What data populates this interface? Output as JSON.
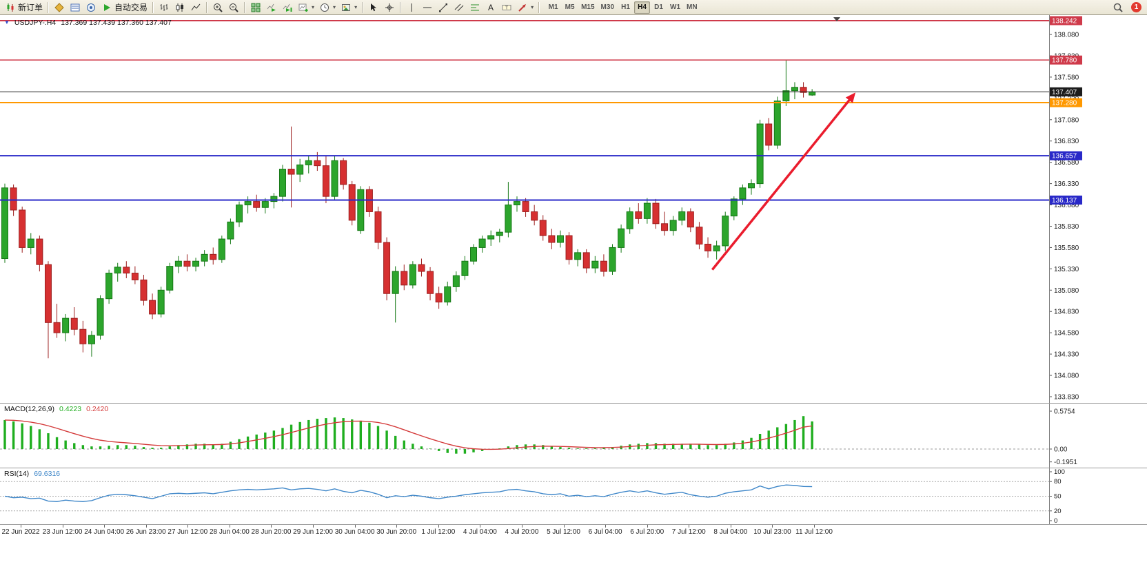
{
  "toolbar": {
    "items": [
      {
        "name": "new-order-button",
        "icon": "new-order-icon",
        "label": "新订单"
      },
      {
        "type": "sep"
      },
      {
        "name": "market-watch-button",
        "icon": "market-watch-icon"
      },
      {
        "name": "data-window-button",
        "icon": "data-window-icon"
      },
      {
        "name": "navigator-button",
        "icon": "navigator-icon"
      },
      {
        "name": "auto-trading-button",
        "icon": "auto-trading-icon",
        "label": "自动交易"
      },
      {
        "type": "sep"
      },
      {
        "name": "bar-chart-button",
        "icon": "bar-chart-icon"
      },
      {
        "name": "candlestick-button",
        "icon": "candlestick-icon"
      },
      {
        "name": "line-chart-button",
        "icon": "line-chart-icon"
      },
      {
        "type": "sep"
      },
      {
        "name": "zoom-in-button",
        "icon": "zoom-in-icon"
      },
      {
        "name": "zoom-out-button",
        "icon": "zoom-out-icon"
      },
      {
        "type": "sep"
      },
      {
        "name": "tile-windows-button",
        "icon": "tile-windows-icon"
      },
      {
        "name": "auto-scroll-button",
        "icon": "auto-scroll-icon"
      },
      {
        "name": "chart-shift-button",
        "icon": "chart-shift-icon"
      },
      {
        "name": "new-chart-button",
        "icon": "new-chart-icon",
        "caret": true
      },
      {
        "name": "periods-button",
        "icon": "period-icon",
        "caret": true
      },
      {
        "name": "templates-button",
        "icon": "template-icon",
        "caret": true
      },
      {
        "type": "sep"
      },
      {
        "name": "cursor-button",
        "icon": "cursor-icon"
      },
      {
        "name": "crosshair-button",
        "icon": "crosshair-icon"
      },
      {
        "type": "sep"
      },
      {
        "name": "vertical-line-button",
        "icon": "vline-icon"
      },
      {
        "name": "horizontal-line-button",
        "icon": "hline-icon"
      },
      {
        "name": "trendline-button",
        "icon": "trendline-icon"
      },
      {
        "name": "channel-button",
        "icon": "channel-icon"
      },
      {
        "name": "fibonacci-button",
        "icon": "fibonacci-icon"
      },
      {
        "name": "text-button",
        "icon": "text-icon"
      },
      {
        "name": "text-label-button",
        "icon": "label-icon"
      },
      {
        "name": "shapes-button",
        "icon": "shapes-icon",
        "caret": true
      },
      {
        "type": "sep"
      }
    ],
    "timeframes": [
      "M1",
      "M5",
      "M15",
      "M30",
      "H1",
      "H4",
      "D1",
      "W1",
      "MN"
    ],
    "active_timeframe": "H4",
    "badge": "1"
  },
  "chart_data": {
    "type": "candlestick",
    "main": {
      "symbol": "USDJPY-.H4",
      "ohlc_text": "137.369 137.439 137.360 137.407",
      "colors": {
        "up": "#2ca52c",
        "up_border": "#157815",
        "down": "#d63031",
        "down_border": "#9c1f1f"
      },
      "yticks": [
        "138.080",
        "137.830",
        "137.580",
        "137.330",
        "137.080",
        "136.830",
        "136.580",
        "136.330",
        "136.080",
        "135.830",
        "135.580",
        "135.330",
        "135.080",
        "134.830",
        "134.580",
        "134.330",
        "134.080",
        "133.830"
      ],
      "hlines": [
        {
          "price": 138.242,
          "label": "138.242",
          "color": "#cf3a4a",
          "width": 2
        },
        {
          "price": 137.78,
          "label": "137.780",
          "color": "#cf3a4a",
          "width": 1.5
        },
        {
          "price": 137.407,
          "label": "137.407",
          "color": "#1c1c1c",
          "width": 1
        },
        {
          "price": 137.28,
          "label": "137.280",
          "color": "#ff9800",
          "width": 2
        },
        {
          "price": 136.657,
          "label": "136.657",
          "color": "#2929c8",
          "width": 2
        },
        {
          "price": 136.137,
          "label": "136.137",
          "color": "#2929c8",
          "width": 2
        }
      ],
      "trend_arrow": {
        "from": {
          "bar": 81.5,
          "price": 135.32
        },
        "to": {
          "bar": 98,
          "price": 137.4
        },
        "color": "#ea1c2d"
      },
      "candles": [
        [
          135.45,
          136.33,
          135.4,
          136.28
        ],
        [
          136.28,
          136.32,
          135.95,
          136.02
        ],
        [
          136.02,
          136.06,
          135.52,
          135.58
        ],
        [
          135.58,
          135.75,
          135.5,
          135.68
        ],
        [
          135.68,
          135.72,
          135.3,
          135.38
        ],
        [
          135.38,
          135.42,
          134.28,
          134.7
        ],
        [
          134.7,
          134.92,
          134.52,
          134.58
        ],
        [
          134.58,
          134.8,
          134.48,
          134.75
        ],
        [
          134.75,
          134.88,
          134.55,
          134.62
        ],
        [
          134.62,
          134.72,
          134.35,
          134.45
        ],
        [
          134.45,
          134.6,
          134.3,
          134.55
        ],
        [
          134.55,
          135.02,
          134.5,
          134.98
        ],
        [
          134.98,
          135.32,
          134.92,
          135.28
        ],
        [
          135.28,
          135.4,
          135.18,
          135.35
        ],
        [
          135.35,
          135.42,
          135.22,
          135.28
        ],
        [
          135.28,
          135.36,
          135.15,
          135.2
        ],
        [
          135.2,
          135.26,
          134.9,
          134.96
        ],
        [
          134.96,
          135.04,
          134.74,
          134.8
        ],
        [
          134.8,
          135.12,
          134.76,
          135.08
        ],
        [
          135.08,
          135.4,
          135.04,
          135.36
        ],
        [
          135.36,
          135.48,
          135.28,
          135.42
        ],
        [
          135.42,
          135.5,
          135.3,
          135.36
        ],
        [
          135.36,
          135.46,
          135.3,
          135.42
        ],
        [
          135.42,
          135.55,
          135.36,
          135.5
        ],
        [
          135.5,
          135.58,
          135.38,
          135.44
        ],
        [
          135.44,
          135.72,
          135.4,
          135.68
        ],
        [
          135.68,
          135.92,
          135.62,
          135.88
        ],
        [
          135.88,
          136.12,
          135.82,
          136.08
        ],
        [
          136.08,
          136.18,
          135.98,
          136.12
        ],
        [
          136.12,
          136.2,
          136.0,
          136.05
        ],
        [
          136.05,
          136.16,
          135.98,
          136.12
        ],
        [
          136.12,
          136.22,
          136.04,
          136.18
        ],
        [
          136.18,
          136.55,
          136.12,
          136.5
        ],
        [
          136.5,
          137.0,
          136.05,
          136.44
        ],
        [
          136.44,
          136.62,
          136.35,
          136.55
        ],
        [
          136.55,
          136.66,
          136.45,
          136.6
        ],
        [
          136.6,
          136.7,
          136.48,
          136.54
        ],
        [
          136.54,
          136.66,
          136.1,
          136.18
        ],
        [
          136.18,
          136.65,
          136.14,
          136.6
        ],
        [
          136.6,
          136.63,
          136.26,
          136.32
        ],
        [
          136.32,
          136.36,
          135.84,
          135.9
        ],
        [
          135.78,
          136.3,
          135.74,
          136.26
        ],
        [
          136.26,
          136.3,
          135.94,
          136.0
        ],
        [
          136.0,
          136.06,
          135.56,
          135.64
        ],
        [
          135.64,
          135.7,
          134.96,
          135.04
        ],
        [
          135.04,
          135.36,
          134.7,
          135.3
        ],
        [
          135.3,
          135.38,
          135.08,
          135.14
        ],
        [
          135.14,
          135.42,
          135.1,
          135.38
        ],
        [
          135.38,
          135.45,
          135.24,
          135.3
        ],
        [
          135.3,
          135.35,
          134.96,
          135.04
        ],
        [
          135.04,
          135.12,
          134.86,
          134.94
        ],
        [
          134.94,
          135.18,
          134.9,
          135.12
        ],
        [
          135.12,
          135.3,
          135.06,
          135.25
        ],
        [
          135.25,
          135.48,
          135.2,
          135.42
        ],
        [
          135.42,
          135.62,
          135.38,
          135.58
        ],
        [
          135.58,
          135.72,
          135.52,
          135.68
        ],
        [
          135.68,
          135.78,
          135.6,
          135.72
        ],
        [
          135.72,
          135.8,
          135.64,
          135.76
        ],
        [
          135.76,
          136.35,
          135.7,
          136.08
        ],
        [
          136.08,
          136.18,
          136.0,
          136.12
        ],
        [
          136.12,
          136.16,
          135.94,
          136.0
        ],
        [
          136.0,
          136.08,
          135.84,
          135.9
        ],
        [
          135.9,
          135.96,
          135.66,
          135.72
        ],
        [
          135.72,
          135.8,
          135.56,
          135.64
        ],
        [
          135.64,
          135.78,
          135.58,
          135.72
        ],
        [
          135.72,
          135.76,
          135.38,
          135.44
        ],
        [
          135.44,
          135.56,
          135.36,
          135.52
        ],
        [
          135.52,
          135.56,
          135.28,
          135.34
        ],
        [
          135.34,
          135.48,
          135.28,
          135.42
        ],
        [
          135.42,
          135.5,
          135.24,
          135.3
        ],
        [
          135.3,
          135.62,
          135.26,
          135.58
        ],
        [
          135.58,
          135.85,
          135.52,
          135.8
        ],
        [
          135.8,
          136.05,
          135.74,
          136.0
        ],
        [
          136.0,
          136.1,
          135.86,
          135.92
        ],
        [
          135.92,
          136.16,
          135.86,
          136.1
        ],
        [
          136.1,
          136.15,
          135.8,
          135.86
        ],
        [
          135.86,
          136.0,
          135.72,
          135.78
        ],
        [
          135.78,
          135.95,
          135.72,
          135.9
        ],
        [
          135.9,
          136.05,
          135.84,
          136.0
        ],
        [
          136.0,
          136.04,
          135.76,
          135.82
        ],
        [
          135.82,
          135.88,
          135.56,
          135.62
        ],
        [
          135.62,
          135.7,
          135.46,
          135.54
        ],
        [
          135.54,
          135.66,
          135.44,
          135.6
        ],
        [
          135.6,
          136.0,
          135.54,
          135.95
        ],
        [
          135.95,
          136.18,
          135.9,
          136.15
        ],
        [
          136.15,
          136.32,
          136.08,
          136.28
        ],
        [
          136.28,
          136.38,
          136.2,
          136.33
        ],
        [
          136.33,
          137.08,
          136.28,
          137.03
        ],
        [
          137.03,
          137.1,
          136.72,
          136.78
        ],
        [
          136.78,
          137.35,
          136.74,
          137.3
        ],
        [
          137.3,
          137.78,
          137.24,
          137.42
        ],
        [
          137.42,
          137.52,
          137.32,
          137.46
        ],
        [
          137.46,
          137.52,
          137.34,
          137.4
        ],
        [
          137.369,
          137.439,
          137.36,
          137.407
        ]
      ]
    },
    "macd": {
      "label": "MACD(12,26,9)",
      "value_main": "0.4223",
      "value_signal": "0.2420",
      "colors": {
        "hist": "#1fae1f",
        "signal": "#d43a3a"
      },
      "yticks": [
        "0.5754",
        "0.00",
        "-0.1951"
      ],
      "hist": [
        0.44,
        0.42,
        0.39,
        0.35,
        0.3,
        0.24,
        0.18,
        0.13,
        0.09,
        0.06,
        0.04,
        0.04,
        0.05,
        0.06,
        0.06,
        0.05,
        0.03,
        0.02,
        0.02,
        0.04,
        0.06,
        0.07,
        0.08,
        0.08,
        0.07,
        0.08,
        0.11,
        0.15,
        0.19,
        0.22,
        0.25,
        0.28,
        0.32,
        0.37,
        0.41,
        0.44,
        0.46,
        0.47,
        0.48,
        0.47,
        0.45,
        0.43,
        0.4,
        0.35,
        0.28,
        0.2,
        0.13,
        0.08,
        0.04,
        0.0,
        -0.03,
        -0.06,
        -0.07,
        -0.07,
        -0.05,
        -0.03,
        -0.01,
        0.01,
        0.04,
        0.06,
        0.07,
        0.07,
        0.06,
        0.04,
        0.03,
        0.02,
        0.01,
        0.01,
        0.01,
        0.02,
        0.03,
        0.05,
        0.07,
        0.08,
        0.09,
        0.09,
        0.08,
        0.08,
        0.08,
        0.08,
        0.07,
        0.06,
        0.06,
        0.08,
        0.1,
        0.13,
        0.17,
        0.23,
        0.28,
        0.33,
        0.38,
        0.44,
        0.5,
        0.42
      ]
    },
    "rsi": {
      "label": "RSI(14)",
      "value": "69.6316",
      "color": "#3f87c9",
      "levels": [
        80,
        50,
        20
      ],
      "yticks": [
        "100",
        "80",
        "50",
        "20",
        "0"
      ],
      "values": [
        50,
        47,
        48,
        45,
        46,
        40,
        39,
        42,
        40,
        39,
        41,
        47,
        52,
        54,
        53,
        51,
        48,
        45,
        50,
        55,
        56,
        55,
        56,
        57,
        55,
        58,
        61,
        63,
        64,
        63,
        64,
        65,
        67,
        63,
        65,
        66,
        64,
        61,
        65,
        60,
        57,
        62,
        59,
        54,
        47,
        51,
        49,
        52,
        50,
        47,
        45,
        48,
        50,
        53,
        55,
        57,
        58,
        59,
        63,
        64,
        61,
        59,
        55,
        53,
        55,
        50,
        52,
        49,
        51,
        49,
        54,
        58,
        61,
        58,
        61,
        57,
        54,
        56,
        58,
        53,
        50,
        48,
        50,
        56,
        59,
        61,
        63,
        71,
        65,
        70,
        73,
        72,
        70,
        69.63
      ]
    },
    "x_labels": [
      "22 Jun 2022",
      "23 Jun 12:00",
      "24 Jun 04:00",
      "26 Jun 23:00",
      "27 Jun 12:00",
      "28 Jun 04:00",
      "28 Jun 20:00",
      "29 Jun 12:00",
      "30 Jun 04:00",
      "30 Jun 20:00",
      "1 Jul 12:00",
      "4 Jul 04:00",
      "4 Jul 20:00",
      "5 Jul 12:00",
      "6 Jul 04:00",
      "6 Jul 20:00",
      "7 Jul 12:00",
      "8 Jul 04:00",
      "10 Jul 23:00",
      "11 Jul 12:00"
    ]
  }
}
